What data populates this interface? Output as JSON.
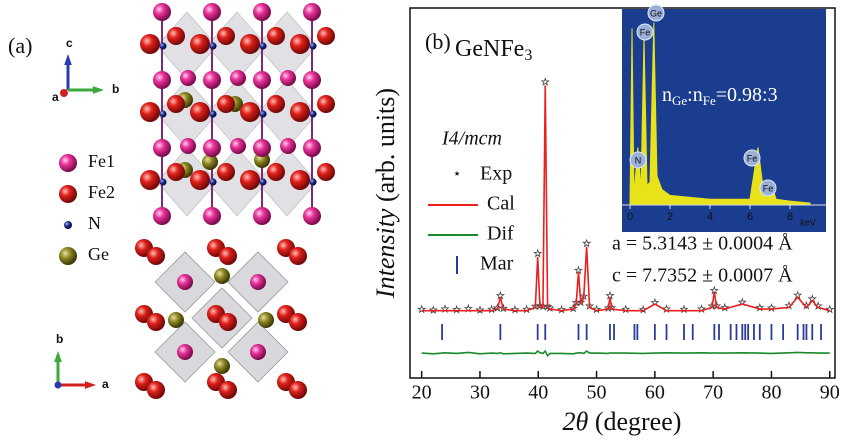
{
  "panel_a": {
    "label": "(a)",
    "legend": [
      "Fe1",
      "Fe2",
      "N",
      "Ge"
    ],
    "axes_top": [
      "c",
      "b",
      "a"
    ],
    "axes_bottom": [
      "b",
      "a"
    ]
  },
  "chart_data": [
    {
      "type": "line",
      "panel_label": "(b)",
      "formula": [
        {
          "text": "GeNFe"
        },
        {
          "text": "3",
          "sub": true
        }
      ],
      "space_group": "I4/mcm",
      "lattice": [
        "a = 5.3143 ± 0.0004 Å",
        "c = 7.7352 ± 0.0007 Å"
      ],
      "y_label": [
        {
          "text": "Intensity",
          "italic": true
        },
        {
          "text": " (arb. units)"
        }
      ],
      "x_label": [
        {
          "text": "2θ",
          "italic": true
        },
        {
          "text": " (degree)"
        }
      ],
      "xlim": [
        18,
        90.9
      ],
      "xticks": [
        20,
        30,
        40,
        50,
        60,
        70,
        80,
        90
      ],
      "ylim": [
        -10,
        100
      ],
      "x": [
        20,
        22,
        24,
        26,
        28,
        30,
        32,
        33,
        33.5,
        34,
        36,
        38,
        39.5,
        39.9,
        40.3,
        40.8,
        41.2,
        41.6,
        42,
        44,
        46,
        46.5,
        46.9,
        47.3,
        47.8,
        48.3,
        48.8,
        50,
        52,
        52.3,
        52.6,
        55,
        58,
        60,
        62,
        65,
        68,
        69.8,
        70.2,
        70.6,
        72,
        75,
        78,
        80,
        83,
        84.5,
        86,
        87,
        88,
        90
      ],
      "series": [
        {
          "name": "Exp",
          "color": "#444444",
          "marker": "star",
          "values": [
            10.4,
            10.2,
            10.5,
            10.3,
            10.6,
            10.2,
            10.4,
            10.8,
            14.5,
            10.7,
            10.3,
            10.4,
            11.3,
            27,
            11.5,
            11.3,
            78,
            11.2,
            10.8,
            10.3,
            10.7,
            12.4,
            22,
            12.5,
            14.3,
            30,
            11.4,
            10.4,
            10.8,
            14.5,
            10.9,
            10.4,
            10.3,
            12.4,
            10.5,
            10.4,
            10.5,
            11.4,
            16,
            11.4,
            10.9,
            12.5,
            10.9,
            10.8,
            11.5,
            14.6,
            11.5,
            13.5,
            11.4,
            10.4
          ]
        },
        {
          "name": "Cal",
          "color": "#e8201f",
          "values": [
            10,
            10,
            10,
            10,
            10,
            10,
            10,
            10.5,
            14,
            10.5,
            10,
            10,
            11,
            26,
            11,
            11,
            77,
            11,
            10.5,
            10,
            10.5,
            12,
            21.5,
            12,
            14,
            29,
            11,
            10,
            10.5,
            14,
            10.5,
            10,
            10,
            12,
            10,
            10,
            10,
            11,
            15.5,
            11,
            10.5,
            12,
            10.5,
            10.5,
            11,
            14,
            11,
            13,
            11,
            10
          ]
        },
        {
          "name": "Dif",
          "color": "#1a8a2a",
          "values": [
            -2.6,
            -2.8,
            -2.5,
            -2.7,
            -2.4,
            -2.8,
            -2.6,
            -2.7,
            -2.5,
            -2.8,
            -2.7,
            -2.6,
            -2.7,
            -2,
            -2.5,
            -2.7,
            -2,
            -3.4,
            -2.7,
            -2.7,
            -2.8,
            -2.6,
            -2.5,
            -2.5,
            -2.7,
            -2,
            -2.6,
            -2.6,
            -2.7,
            -2.5,
            -2.6,
            -2.6,
            -2.7,
            -2.6,
            -2.5,
            -2.6,
            -2.5,
            -2.6,
            -2.5,
            -2.6,
            -2.6,
            -2.5,
            -2.6,
            -2.7,
            -2.5,
            -2.4,
            -2.5,
            -2.5,
            -2.6,
            -2.6
          ]
        },
        {
          "name": "Mar",
          "color": "#2b3a9e",
          "x": [
            23.5,
            33.5,
            39.9,
            41.2,
            46.9,
            48.3,
            52.3,
            53,
            56.5,
            57,
            60,
            62,
            65,
            66.5,
            70.2,
            71,
            73,
            74,
            75,
            75.5,
            76,
            77,
            78,
            80,
            82,
            84.5,
            85.5,
            86,
            87,
            88.5
          ]
        }
      ]
    },
    {
      "type": "area",
      "color": "#e8e21a",
      "background": "#1b3d8f",
      "ratio_label": [
        {
          "text": "n"
        },
        {
          "text": "Ge",
          "sub": true
        },
        {
          "text": ":n"
        },
        {
          "text": "Fe",
          "sub": true
        },
        {
          "text": "=0.98:3"
        }
      ],
      "x_label": "keV",
      "xlim": [
        -0.4,
        9.8
      ],
      "xticks": [
        0,
        2,
        4,
        6,
        8
      ],
      "ylim": [
        0,
        100
      ],
      "peak_labels": [
        "Ge",
        "Fe",
        "N",
        "Fe",
        "Fe"
      ],
      "x": [
        0,
        0.1,
        0.2,
        0.39,
        0.55,
        0.7,
        0.85,
        1.0,
        1.19,
        1.35,
        1.6,
        2,
        3,
        4,
        5,
        6,
        6.4,
        6.7,
        7.06,
        7.3,
        8,
        9
      ],
      "values": [
        0,
        92,
        5,
        30,
        8,
        88,
        10,
        12,
        95,
        15,
        8,
        5,
        4,
        3,
        3,
        3,
        30,
        5,
        12,
        3,
        2,
        1
      ]
    }
  ]
}
